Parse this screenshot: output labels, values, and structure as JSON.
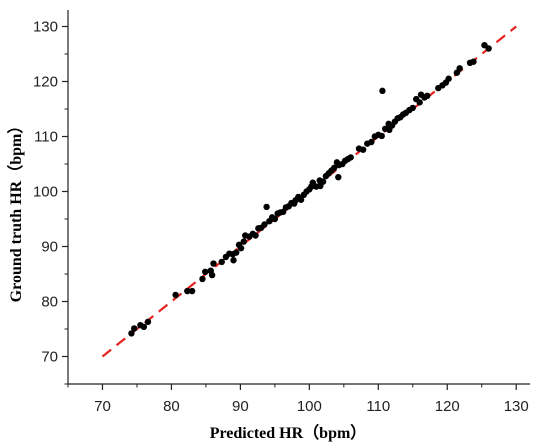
{
  "chart_data": {
    "type": "scatter",
    "title": "",
    "xlabel": "Predicted HR（bpm）",
    "ylabel": "Ground truth HR（bpm）",
    "xlim": [
      65,
      132
    ],
    "ylim": [
      65,
      133
    ],
    "xticks": [
      70,
      80,
      90,
      100,
      110,
      120,
      130
    ],
    "yticks": [
      70,
      80,
      90,
      100,
      110,
      120,
      130
    ],
    "grid": false,
    "legend": "none",
    "colors": {
      "points": "#000000",
      "fit_line": "#e8231f",
      "axis": "#222222"
    },
    "fit_line": {
      "style": "dashed",
      "x": [
        70,
        130
      ],
      "y": [
        70,
        130
      ]
    },
    "points": [
      [
        74.2,
        74.2
      ],
      [
        74.6,
        75.1
      ],
      [
        75.5,
        75.7
      ],
      [
        76.0,
        75.4
      ],
      [
        76.6,
        76.3
      ],
      [
        80.6,
        81.2
      ],
      [
        82.3,
        81.9
      ],
      [
        83.0,
        81.9
      ],
      [
        84.5,
        84.1
      ],
      [
        84.9,
        85.4
      ],
      [
        85.7,
        85.6
      ],
      [
        86.1,
        86.9
      ],
      [
        85.9,
        84.8
      ],
      [
        87.3,
        87.2
      ],
      [
        87.9,
        88.1
      ],
      [
        88.4,
        88.7
      ],
      [
        88.9,
        88.6
      ],
      [
        89.0,
        87.5
      ],
      [
        89.4,
        88.9
      ],
      [
        89.8,
        90.3
      ],
      [
        90.1,
        89.7
      ],
      [
        90.5,
        90.9
      ],
      [
        90.7,
        92.0
      ],
      [
        91.3,
        91.8
      ],
      [
        91.8,
        92.3
      ],
      [
        92.2,
        92.0
      ],
      [
        92.6,
        93.3
      ],
      [
        93.0,
        93.4
      ],
      [
        93.5,
        94.0
      ],
      [
        93.8,
        97.2
      ],
      [
        94.2,
        94.6
      ],
      [
        94.6,
        95.3
      ],
      [
        95.0,
        95.0
      ],
      [
        95.4,
        96.0
      ],
      [
        95.8,
        96.2
      ],
      [
        96.2,
        96.3
      ],
      [
        96.6,
        97.1
      ],
      [
        97.0,
        97.3
      ],
      [
        97.4,
        97.9
      ],
      [
        97.8,
        97.8
      ],
      [
        98.0,
        98.4
      ],
      [
        98.4,
        99.0
      ],
      [
        98.8,
        98.5
      ],
      [
        99.2,
        99.4
      ],
      [
        99.6,
        100.0
      ],
      [
        100.0,
        100.4
      ],
      [
        100.3,
        100.9
      ],
      [
        100.5,
        101.6
      ],
      [
        101.0,
        100.9
      ],
      [
        101.5,
        102.0
      ],
      [
        101.6,
        101.0
      ],
      [
        102.0,
        101.8
      ],
      [
        102.4,
        102.8
      ],
      [
        102.8,
        103.3
      ],
      [
        103.2,
        103.8
      ],
      [
        103.6,
        104.3
      ],
      [
        104.0,
        105.3
      ],
      [
        104.3,
        104.8
      ],
      [
        104.2,
        102.6
      ],
      [
        104.8,
        105.0
      ],
      [
        105.2,
        105.6
      ],
      [
        105.6,
        105.9
      ],
      [
        106.0,
        106.2
      ],
      [
        107.2,
        107.8
      ],
      [
        107.8,
        107.6
      ],
      [
        108.4,
        108.7
      ],
      [
        109.0,
        109.0
      ],
      [
        109.5,
        110.0
      ],
      [
        110.0,
        110.3
      ],
      [
        110.6,
        118.3
      ],
      [
        110.5,
        110.1
      ],
      [
        111.0,
        111.4
      ],
      [
        111.5,
        112.3
      ],
      [
        111.6,
        111.2
      ],
      [
        112.0,
        112.0
      ],
      [
        112.4,
        112.7
      ],
      [
        112.8,
        113.3
      ],
      [
        113.2,
        113.5
      ],
      [
        113.6,
        114.0
      ],
      [
        114.0,
        114.3
      ],
      [
        114.5,
        114.8
      ],
      [
        115.0,
        115.2
      ],
      [
        115.5,
        116.8
      ],
      [
        116.0,
        116.2
      ],
      [
        116.2,
        117.6
      ],
      [
        116.7,
        117.1
      ],
      [
        117.1,
        117.4
      ],
      [
        118.7,
        118.8
      ],
      [
        119.3,
        119.3
      ],
      [
        119.8,
        119.8
      ],
      [
        120.2,
        120.5
      ],
      [
        121.4,
        121.6
      ],
      [
        121.8,
        122.4
      ],
      [
        123.3,
        123.4
      ],
      [
        123.8,
        123.6
      ],
      [
        125.4,
        126.6
      ],
      [
        126.0,
        126.0
      ]
    ]
  }
}
